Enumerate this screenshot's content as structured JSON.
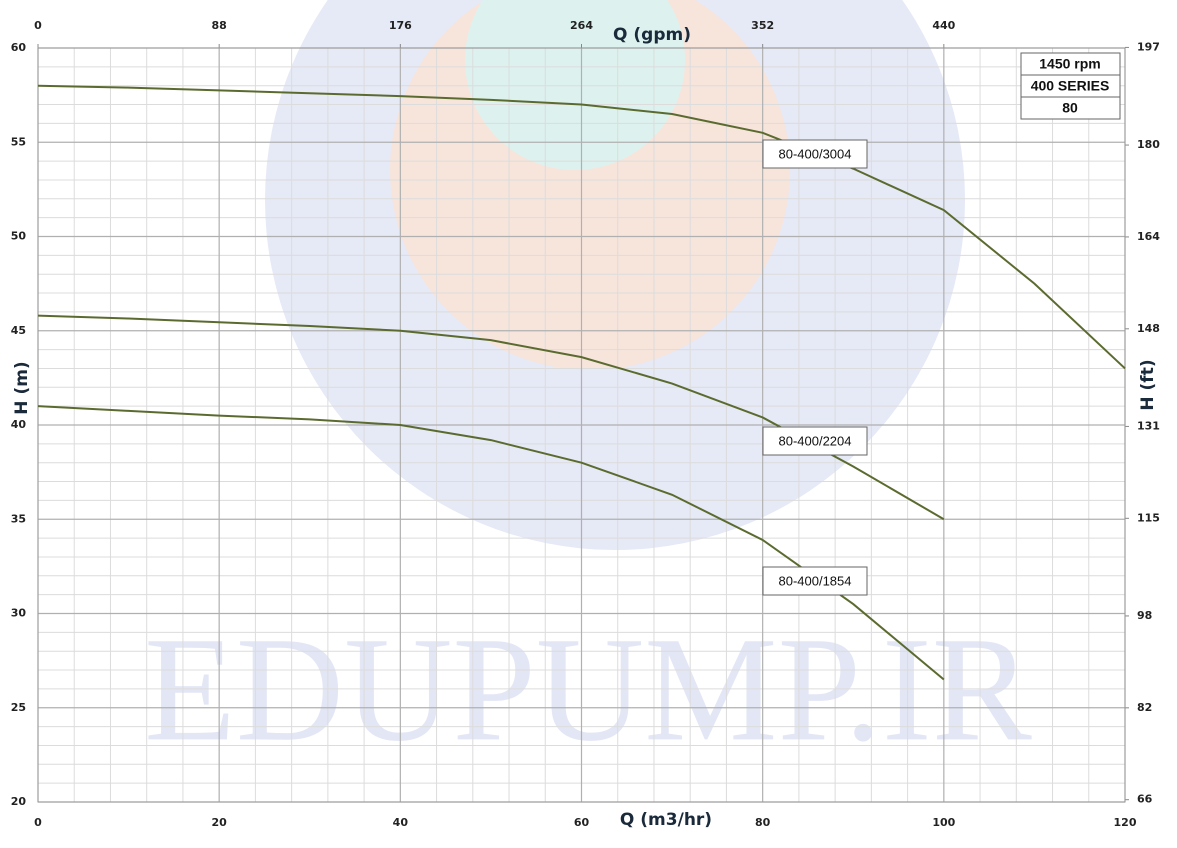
{
  "chart_data": {
    "type": "line",
    "x_label": "Q (m3/hr)",
    "x2_label": "Q (gpm)",
    "y_label": "H (m)",
    "y2_label": "H (ft)",
    "watermark": "EDUPUMP.IR",
    "info_box": [
      "1450 rpm",
      "400 SERIES",
      "80"
    ],
    "x": [
      0,
      10,
      20,
      30,
      40,
      50,
      60,
      70,
      80,
      90,
      100,
      110,
      120
    ],
    "series": [
      {
        "name": "80-400/3004",
        "color": "#5b6b2f",
        "values": [
          58,
          57.9,
          57.75,
          57.6,
          57.45,
          57.25,
          57.0,
          56.5,
          55.5,
          53.6,
          51.4,
          47.5,
          43.0
        ]
      },
      {
        "name": "80-400/2204",
        "color": "#5b6b2f",
        "values": [
          45.8,
          45.65,
          45.45,
          45.25,
          45.0,
          44.5,
          43.6,
          42.2,
          40.4,
          37.8,
          35.0,
          null,
          null
        ]
      },
      {
        "name": "80-400/1854",
        "color": "#5b6b2f",
        "values": [
          41.0,
          40.75,
          40.5,
          40.3,
          40.0,
          39.2,
          38.0,
          36.3,
          33.9,
          30.5,
          26.5,
          null,
          null
        ]
      }
    ],
    "xlim": [
      0,
      120
    ],
    "xticks": [
      0,
      20,
      40,
      60,
      80,
      100,
      120
    ],
    "x2lim": [
      0,
      528
    ],
    "x2ticks": [
      0,
      88,
      176,
      264,
      352,
      440
    ],
    "ylim": [
      20,
      60
    ],
    "yticks": [
      20,
      25,
      30,
      35,
      40,
      45,
      50,
      55,
      60
    ],
    "y2lim": [
      65.6,
      196.9
    ],
    "y2ticks": [
      66,
      82,
      98,
      115,
      131,
      148,
      164,
      180,
      197
    ],
    "grid": true
  }
}
